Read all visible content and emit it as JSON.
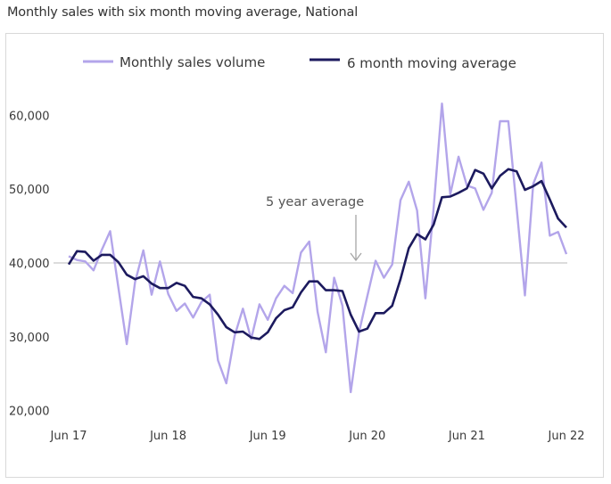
{
  "chart_data": {
    "type": "line",
    "title": "Monthly sales with six month moving average, National",
    "xlabel": "",
    "ylabel": "",
    "x_start": "Jun 17",
    "x_end": "Jun 22",
    "x_frequency": "monthly",
    "x_tick_labels": [
      "Jun 17",
      "Jun 18",
      "Jun 19",
      "Jun 20",
      "Jun 21",
      "Jun 22"
    ],
    "y_tick_labels": [
      "20,000",
      "30,000",
      "40,000",
      "50,000",
      "60,000"
    ],
    "ylim": [
      20000,
      62000
    ],
    "grid": false,
    "legend_position": "top",
    "series": [
      {
        "name": "Monthly sales volume",
        "color": "#b3a5ea",
        "values": [
          40900,
          40400,
          40200,
          39000,
          41800,
          44300,
          36600,
          29000,
          37400,
          41700,
          35700,
          40200,
          35800,
          33500,
          34500,
          32600,
          34700,
          35700,
          26800,
          23700,
          30100,
          33800,
          29700,
          34400,
          32300,
          35200,
          36900,
          35900,
          41400,
          42900,
          33400,
          27900,
          38000,
          34200,
          22500,
          30600,
          35500,
          40300,
          38000,
          39800,
          48500,
          51000,
          47100,
          35200,
          47500,
          61600,
          49300,
          54400,
          50500,
          50100,
          47200,
          49500,
          59200,
          59200,
          47500,
          35600,
          50700,
          53600,
          43700,
          44200,
          41200
        ]
      },
      {
        "name": "6 month moving average",
        "color": "#1c1a5e",
        "values": [
          39800,
          41600,
          41500,
          40300,
          41100,
          41100,
          40100,
          38400,
          37800,
          38200,
          37200,
          36600,
          36600,
          37300,
          36900,
          35400,
          35200,
          34400,
          33000,
          31300,
          30600,
          30700,
          29900,
          29700,
          30600,
          32500,
          33600,
          34000,
          36000,
          37500,
          37500,
          36300,
          36300,
          36200,
          33000,
          30700,
          31100,
          33200,
          33200,
          34200,
          37800,
          42000,
          43900,
          43200,
          45200,
          48900,
          49000,
          49500,
          50100,
          52600,
          52100,
          50100,
          51800,
          52700,
          52400,
          49900,
          50400,
          51100,
          48600,
          46000,
          44800
        ]
      }
    ],
    "reference_line": {
      "value": 40000,
      "label": "5 year average",
      "color": "#c8c8c8"
    }
  }
}
